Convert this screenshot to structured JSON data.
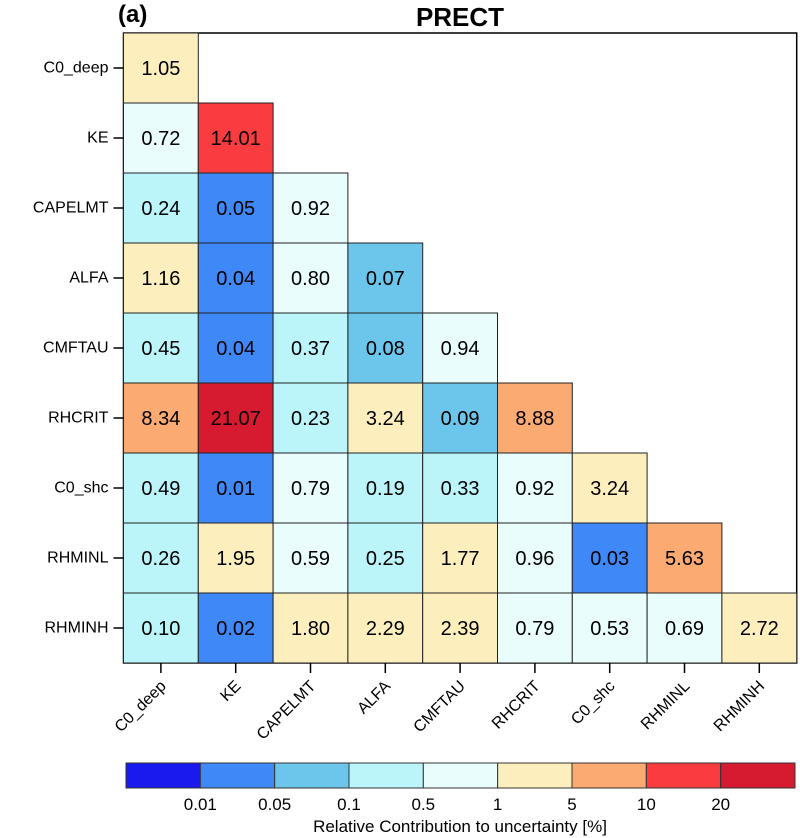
{
  "chart_data": {
    "type": "heatmap",
    "panel_label": "(a)",
    "title": "PRECT",
    "rows": [
      "C0_deep",
      "KE",
      "CAPELMT",
      "ALFA",
      "CMFTAU",
      "RHCRIT",
      "C0_shc",
      "RHMINL",
      "RHMINH"
    ],
    "cols": [
      "C0_deep",
      "KE",
      "CAPELMT",
      "ALFA",
      "CMFTAU",
      "RHCRIT",
      "C0_shc",
      "RHMINL",
      "RHMINH"
    ],
    "values": [
      [
        1.05
      ],
      [
        0.72,
        14.01
      ],
      [
        0.24,
        0.05,
        0.92
      ],
      [
        1.16,
        0.04,
        0.8,
        0.07
      ],
      [
        0.45,
        0.04,
        0.37,
        0.08,
        0.94
      ],
      [
        8.34,
        21.07,
        0.23,
        3.24,
        0.09,
        8.88
      ],
      [
        0.49,
        0.01,
        0.79,
        0.19,
        0.33,
        0.92,
        3.24
      ],
      [
        0.26,
        1.95,
        0.59,
        0.25,
        1.77,
        0.96,
        0.03,
        5.63
      ],
      [
        0.1,
        0.02,
        1.8,
        2.29,
        2.39,
        0.79,
        0.53,
        0.69,
        2.72
      ]
    ],
    "colorbar": {
      "label": "Relative Contribution to uncertainty [%]",
      "ticks": [
        "0.01",
        "0.05",
        "0.1",
        "0.5",
        "1",
        "5",
        "10",
        "20"
      ],
      "thresholds": [
        0.01,
        0.05,
        0.1,
        0.5,
        1,
        5,
        10,
        20
      ],
      "colors": [
        "#1a1aee",
        "#3f88f8",
        "#6cc5ea",
        "#bbf5fa",
        "#e9fdfd",
        "#fdefbd",
        "#fbaa72",
        "#f93c3f",
        "#d61a2f"
      ]
    }
  }
}
